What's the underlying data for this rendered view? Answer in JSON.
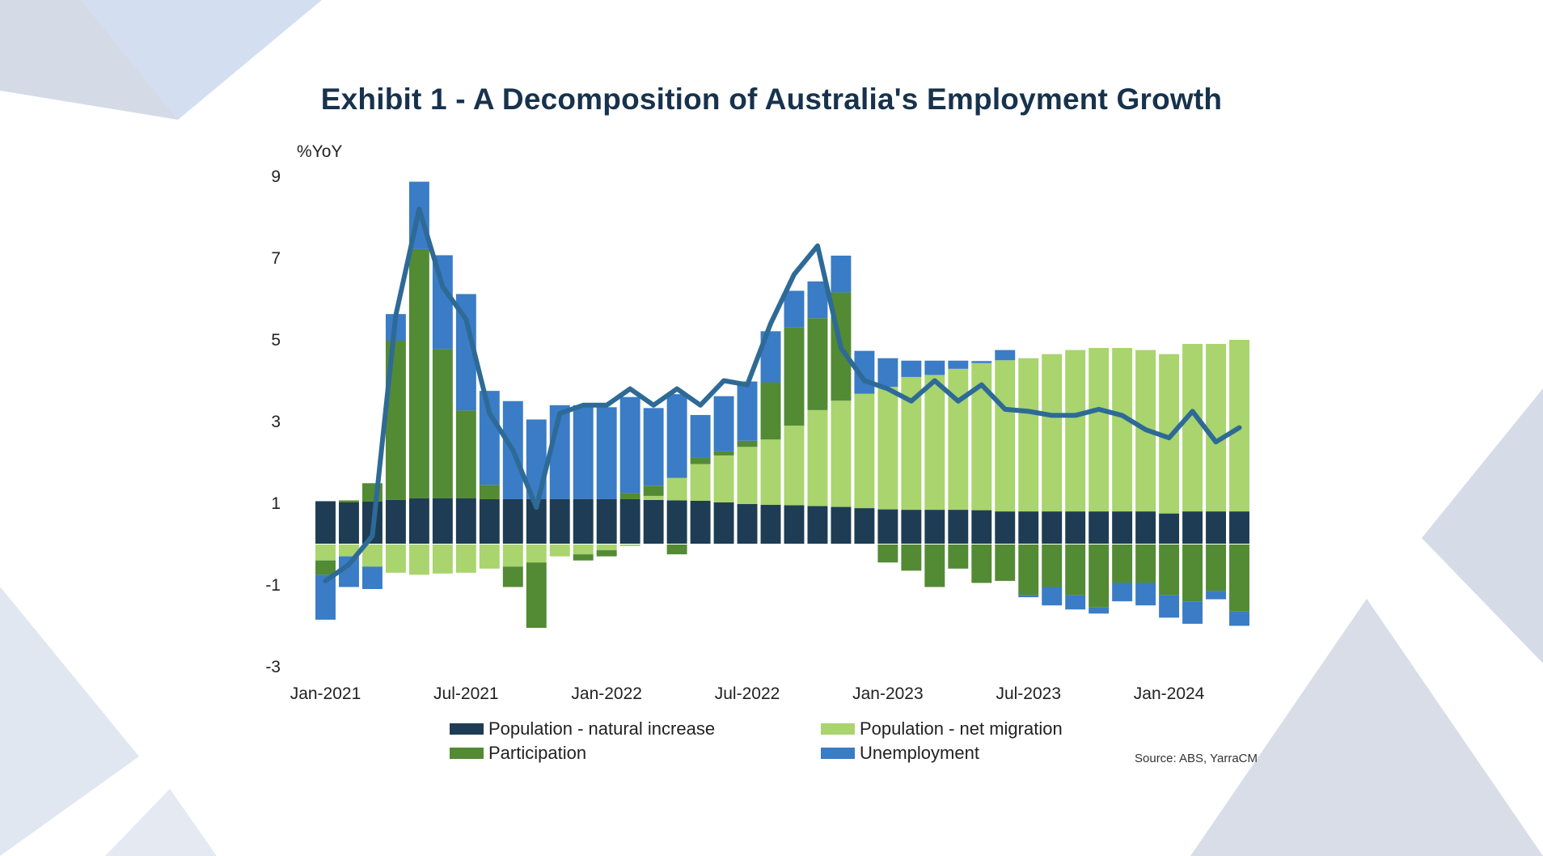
{
  "title": "Exhibit 1 - A Decomposition of Australia's Employment Growth",
  "source": "Source: ABS, YarraCM",
  "colors": {
    "natural": "#1e3d54",
    "migration": "#a9d46e",
    "participation": "#538a34",
    "unemployment": "#3a7cc6",
    "line": "#2e6a96"
  },
  "legend": {
    "natural": "Population - natural increase",
    "migration": "Population - net migration",
    "participation": "Participation",
    "unemployment": "Unemployment"
  },
  "chart_data": {
    "type": "bar",
    "stacked": true,
    "title": "Exhibit 1 - A Decomposition of Australia's Employment Growth",
    "ylabel": "%YoY",
    "ylim": [
      -3,
      9
    ],
    "yticks": [
      9,
      7,
      5,
      3,
      1,
      -1,
      -3
    ],
    "xtick_labels": [
      {
        "index": 0,
        "label": "Jan-2021"
      },
      {
        "index": 6,
        "label": "Jul-2021"
      },
      {
        "index": 12,
        "label": "Jan-2022"
      },
      {
        "index": 18,
        "label": "Jul-2022"
      },
      {
        "index": 24,
        "label": "Jan-2023"
      },
      {
        "index": 30,
        "label": "Jul-2023"
      },
      {
        "index": 36,
        "label": "Jan-2024"
      }
    ],
    "categories": [
      "Jan-2021",
      "Feb-2021",
      "Mar-2021",
      "Apr-2021",
      "May-2021",
      "Jun-2021",
      "Jul-2021",
      "Aug-2021",
      "Sep-2021",
      "Oct-2021",
      "Nov-2021",
      "Dec-2021",
      "Jan-2022",
      "Feb-2022",
      "Mar-2022",
      "Apr-2022",
      "May-2022",
      "Jun-2022",
      "Jul-2022",
      "Aug-2022",
      "Sep-2022",
      "Oct-2022",
      "Nov-2022",
      "Dec-2022",
      "Jan-2023",
      "Feb-2023",
      "Mar-2023",
      "Apr-2023",
      "May-2023",
      "Jun-2023",
      "Jul-2023",
      "Aug-2023",
      "Sep-2023",
      "Oct-2023",
      "Nov-2023",
      "Dec-2023",
      "Jan-2024",
      "Feb-2024",
      "Mar-2024",
      "Apr-2024"
    ],
    "series": [
      {
        "name": "Population - natural increase",
        "values": [
          1.05,
          1.02,
          1.04,
          1.08,
          1.12,
          1.12,
          1.12,
          1.1,
          1.1,
          1.1,
          1.1,
          1.1,
          1.1,
          1.1,
          1.08,
          1.07,
          1.06,
          1.02,
          0.98,
          0.96,
          0.95,
          0.93,
          0.91,
          0.88,
          0.85,
          0.84,
          0.84,
          0.84,
          0.83,
          0.8,
          0.8,
          0.8,
          0.8,
          0.8,
          0.8,
          0.8,
          0.75,
          0.8,
          0.8,
          0.8
        ]
      },
      {
        "name": "Population - net migration",
        "values": [
          -0.4,
          -0.3,
          -0.55,
          -0.7,
          -0.75,
          -0.72,
          -0.7,
          -0.6,
          -0.55,
          -0.45,
          -0.3,
          -0.25,
          -0.15,
          -0.05,
          0.1,
          0.55,
          0.9,
          1.15,
          1.4,
          1.6,
          1.95,
          2.35,
          2.6,
          2.8,
          3.0,
          3.25,
          3.3,
          3.45,
          3.6,
          3.7,
          3.75,
          3.85,
          3.95,
          4.0,
          4.0,
          3.95,
          3.9,
          4.1,
          4.1,
          4.2
        ]
      },
      {
        "name": "Participation",
        "values": [
          -0.35,
          0.05,
          0.45,
          3.9,
          6.1,
          3.65,
          2.15,
          0.35,
          -0.5,
          -1.6,
          0.0,
          -0.15,
          -0.15,
          0.15,
          0.25,
          -0.25,
          0.15,
          0.1,
          0.15,
          1.4,
          2.4,
          2.25,
          2.65,
          0.0,
          -0.45,
          -0.65,
          -1.05,
          -0.6,
          -0.95,
          -0.9,
          -1.25,
          -1.05,
          -1.25,
          -1.55,
          -0.95,
          -0.95,
          -1.25,
          -1.4,
          -1.15,
          -1.65
        ]
      },
      {
        "name": "Unemployment",
        "values": [
          -1.1,
          -0.75,
          -0.55,
          0.65,
          1.65,
          2.3,
          2.85,
          2.3,
          2.4,
          1.95,
          2.3,
          2.3,
          2.25,
          2.35,
          1.9,
          2.05,
          1.05,
          1.35,
          1.45,
          1.25,
          0.9,
          0.9,
          0.9,
          1.05,
          0.7,
          0.4,
          0.35,
          0.2,
          0.05,
          0.25,
          -0.05,
          -0.45,
          -0.35,
          -0.15,
          -0.45,
          -0.55,
          -0.55,
          -0.55,
          -0.2,
          -0.35
        ]
      },
      {
        "name": "Employment growth",
        "type": "line",
        "values": [
          -0.9,
          -0.5,
          0.2,
          5.6,
          8.2,
          6.3,
          5.5,
          3.2,
          2.3,
          0.9,
          3.2,
          3.4,
          3.4,
          3.8,
          3.4,
          3.8,
          3.4,
          4.0,
          3.9,
          5.4,
          6.6,
          7.3,
          4.8,
          4.0,
          3.8,
          3.5,
          4.0,
          3.5,
          3.9,
          3.3,
          3.25,
          3.15,
          3.15,
          3.3,
          3.15,
          2.8,
          2.6,
          3.25,
          2.5,
          2.85
        ]
      }
    ]
  }
}
